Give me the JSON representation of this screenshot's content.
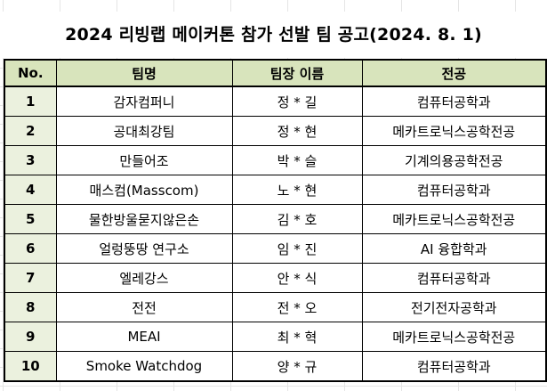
{
  "title": "2024 리빙랩 메이커톤 참가 선발 팀 공고(2024. 8. 1)",
  "table": {
    "headers": [
      "No.",
      "팀명",
      "팀장 이름",
      "전공"
    ],
    "rows": [
      {
        "no": "1",
        "team": "감자컴퍼니",
        "leader": "정 * 길",
        "major": "컴퓨터공학과"
      },
      {
        "no": "2",
        "team": "공대최강팀",
        "leader": "정 * 현",
        "major": "메카트로닉스공학전공"
      },
      {
        "no": "3",
        "team": "만들어조",
        "leader": "박 * 슬",
        "major": "기계의용공학전공"
      },
      {
        "no": "4",
        "team": "매스컴(Masscom)",
        "leader": "노 * 현",
        "major": "컴퓨터공학과"
      },
      {
        "no": "5",
        "team": "물한방울묻지않은손",
        "leader": "김 * 호",
        "major": "메카트로닉스공학전공"
      },
      {
        "no": "6",
        "team": "얼렁뚱땅 연구소",
        "leader": "임 * 진",
        "major": "AI 융합학과"
      },
      {
        "no": "7",
        "team": "엘레강스",
        "leader": "안 * 식",
        "major": "컴퓨터공학과"
      },
      {
        "no": "8",
        "team": "전전",
        "leader": "전 * 오",
        "major": "전기전자공학과"
      },
      {
        "no": "9",
        "team": "MEAI",
        "leader": "최 * 혁",
        "major": "메카트로닉스공학전공"
      },
      {
        "no": "10",
        "team": "Smoke Watchdog",
        "leader": "양 * 규",
        "major": "컴퓨터공학과"
      }
    ]
  },
  "colors": {
    "header_bg": "#d8e4bc",
    "no_column_bg": "#ebf1de",
    "border": "#000000"
  }
}
